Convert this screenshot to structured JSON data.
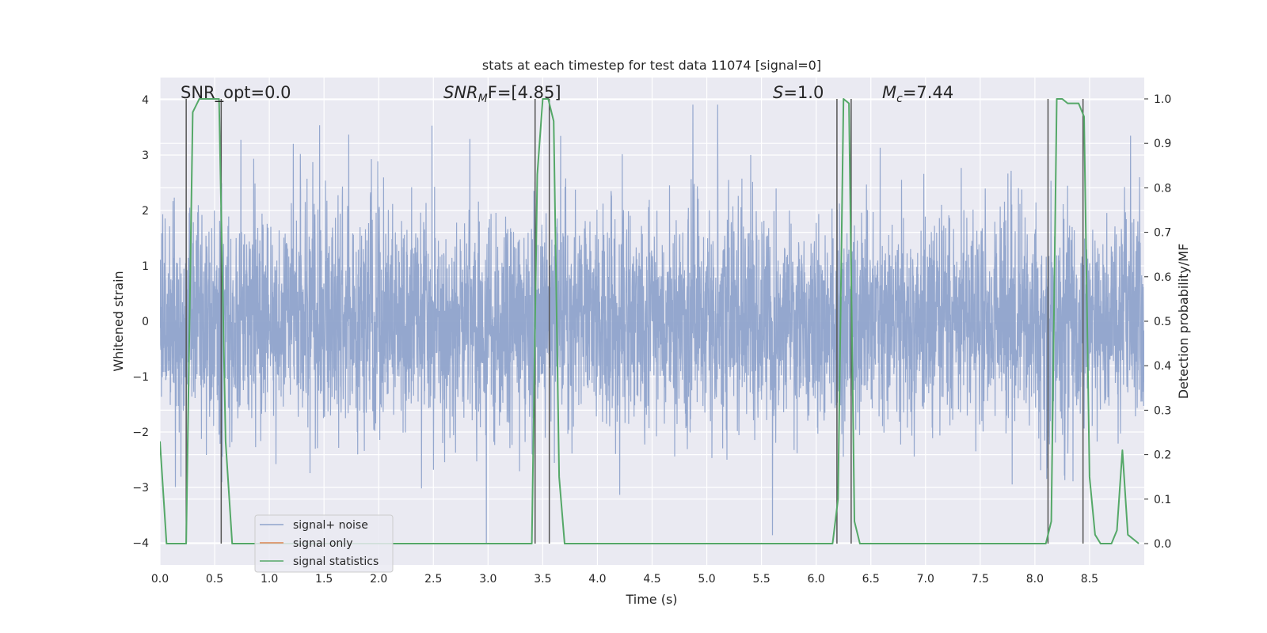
{
  "chart_data": {
    "type": "line",
    "title": "stats at each timestep for test data 11074 [signal=0]",
    "xlabel": "Time (s)",
    "ylabel": "Whitened strain",
    "y2label": "Detection probability/MF",
    "xlim": [
      0.0,
      9.0
    ],
    "ylim": [
      -4.4,
      4.4
    ],
    "y2lim": [
      -0.048,
      1.048
    ],
    "xticks": [
      "0.0",
      "0.5",
      "1.0",
      "1.5",
      "2.0",
      "2.5",
      "3.0",
      "3.5",
      "4.0",
      "4.5",
      "5.0",
      "5.5",
      "6.0",
      "6.5",
      "7.0",
      "7.5",
      "8.0",
      "8.5"
    ],
    "yticks": [
      "4",
      "3",
      "2",
      "1",
      "0",
      "−1",
      "−2",
      "−3",
      "−4"
    ],
    "y2ticks": [
      "1.0",
      "0.9",
      "0.8",
      "0.7",
      "0.6",
      "0.5",
      "0.4",
      "0.3",
      "0.2",
      "0.1",
      "0.0"
    ],
    "annotations": {
      "snr_opt": "SNR_opt=0.0",
      "snr_mf_var": "SNR",
      "snr_mf_sub": "M",
      "snr_mf_rest": "F=[4.85]",
      "s_var": "S",
      "s_rest": "=1.0",
      "mc_var": "M",
      "mc_sub": "c",
      "mc_rest": "=7.44"
    },
    "legend": {
      "placement": "lower-left",
      "entries": [
        "signal+ noise",
        "signal only",
        "signal statistics"
      ]
    },
    "colors": {
      "noise": "#8fa3cb",
      "signal_only": "#dd8452",
      "statistics": "#55a868",
      "vlines": "#555555",
      "background": "#eaeaf2",
      "grid": "#ffffff"
    },
    "series": [
      {
        "name": "signal statistics",
        "axis": "right",
        "x": [
          0.0,
          0.06,
          0.12,
          0.18,
          0.24,
          0.3,
          0.36,
          0.42,
          0.48,
          0.54,
          0.6,
          0.66,
          0.72,
          1.0,
          2.0,
          3.0,
          3.4,
          3.45,
          3.5,
          3.55,
          3.6,
          3.65,
          3.7,
          3.75,
          4.0,
          5.0,
          5.5,
          5.8,
          6.0,
          6.15,
          6.2,
          6.25,
          6.3,
          6.35,
          6.4,
          6.5,
          7.0,
          7.25,
          7.5,
          8.0,
          8.1,
          8.15,
          8.2,
          8.25,
          8.3,
          8.4,
          8.45,
          8.5,
          8.55,
          8.6,
          8.7,
          8.75,
          8.8,
          8.85,
          8.95
        ],
        "values": [
          0.23,
          0.0,
          0.0,
          0.0,
          0.0,
          0.97,
          1.0,
          1.0,
          1.0,
          1.0,
          0.23,
          0.0,
          0.0,
          0.0,
          0.0,
          0.0,
          0.0,
          0.83,
          1.0,
          1.0,
          0.95,
          0.15,
          0.0,
          0.0,
          0.0,
          0.0,
          0.0,
          0.0,
          0.0,
          0.0,
          0.1,
          1.0,
          0.99,
          0.05,
          0.0,
          0.0,
          0.0,
          0.0,
          0.0,
          0.0,
          0.0,
          0.05,
          1.0,
          1.0,
          0.99,
          0.99,
          0.96,
          0.15,
          0.02,
          0.0,
          0.0,
          0.03,
          0.21,
          0.02,
          0.0
        ]
      }
    ],
    "vlines": [
      0.24,
      0.56,
      3.43,
      3.56,
      6.19,
      6.32,
      8.12,
      8.44
    ],
    "noise": {
      "name": "signal+ noise",
      "description_values": "dense Gaussian-like whitened strain, typical envelope about ±1.6 with spikes up to 4.0 and down to -4.0"
    }
  }
}
